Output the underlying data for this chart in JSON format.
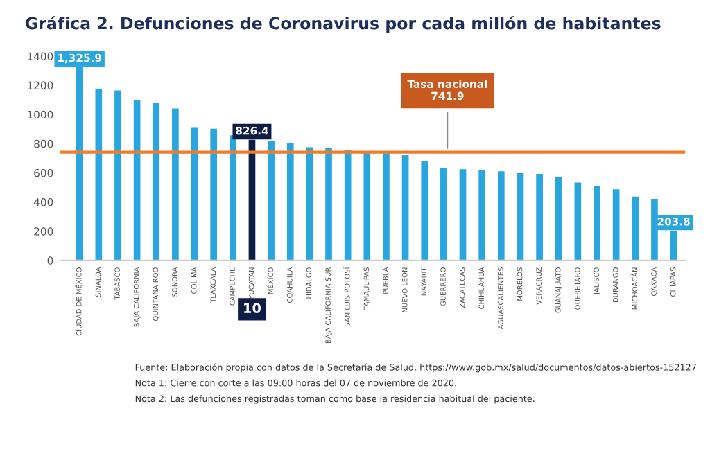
{
  "chart_data": {
    "type": "bar",
    "title": "Gráfica 2. Defunciones de Coronavirus por cada millón de habitantes",
    "categories": [
      "CIUDAD DE MÉXICO",
      "SINALOA",
      "TABASCO",
      "BAJA CALIFORNIA",
      "QUINTANA ROO",
      "SONORA",
      "COLIMA",
      "TLAXCALA",
      "CAMPECHE",
      "YUCATÁN",
      "MÉXICO",
      "COAHUILA",
      "HIDALGO",
      "BAJA CALIFORNIA SUR",
      "SAN LUIS POTOSÍ",
      "TAMAULIPAS",
      "PUEBLA",
      "NUEVO LEÓN",
      "NAYARIT",
      "GUERRERO",
      "ZACATECAS",
      "CHIHUAHUA",
      "AGUASCALIENTES",
      "MORELOS",
      "VERACRUZ",
      "GUANAJUATO",
      "QUERÉTARO",
      "JALISCO",
      "DURANGO",
      "MICHOACÁN",
      "OAXACA",
      "CHIAPAS"
    ],
    "values": [
      1325.9,
      1174,
      1165,
      1100,
      1080,
      1041,
      909,
      903,
      858,
      826.4,
      820,
      805,
      776,
      770,
      758,
      740,
      737,
      726,
      678,
      634,
      625,
      617,
      611,
      602,
      593,
      569,
      534,
      510,
      487,
      437,
      422,
      203.8
    ],
    "colors": [
      "#29a6df",
      "#29a6df",
      "#29a6df",
      "#29a6df",
      "#29a6df",
      "#29a6df",
      "#29a6df",
      "#29a6df",
      "#29a6df",
      "#0e1d45",
      "#29a6df",
      "#29a6df",
      "#29a6df",
      "#29a6df",
      "#29a6df",
      "#29a6df",
      "#29a6df",
      "#29a6df",
      "#29a6df",
      "#29a6df",
      "#29a6df",
      "#29a6df",
      "#29a6df",
      "#29a6df",
      "#29a6df",
      "#29a6df",
      "#29a6df",
      "#29a6df",
      "#29a6df",
      "#29a6df",
      "#29a6df",
      "#29a6df"
    ],
    "value_labels": [
      "1,325.9",
      null,
      null,
      null,
      null,
      null,
      null,
      null,
      null,
      "826.4",
      null,
      null,
      null,
      null,
      null,
      null,
      null,
      null,
      null,
      null,
      null,
      null,
      null,
      null,
      null,
      null,
      null,
      null,
      null,
      null,
      null,
      "203.8"
    ],
    "ylim": [
      0,
      1400
    ],
    "yticks": [
      0,
      200,
      400,
      600,
      800,
      1000,
      1200,
      1400
    ],
    "grid": false,
    "ref_lines": [
      {
        "axis": "y",
        "value": 741.9,
        "label": "Tasa nacional\n741.9",
        "color": "#f07c2a"
      }
    ],
    "annotations": [
      "10",
      "Fuente: Elaboración propia con datos de la Secretaría de Salud. https://www.gob.mx/salud/documentos/datos-abiertos-152127",
      "Nota 1: Cierre con corte a las 09:00 horas del 07 de noviembre de 2020.",
      "Nota 2: Las defunciones registradas toman como base la residencia habitual del paciente."
    ]
  }
}
